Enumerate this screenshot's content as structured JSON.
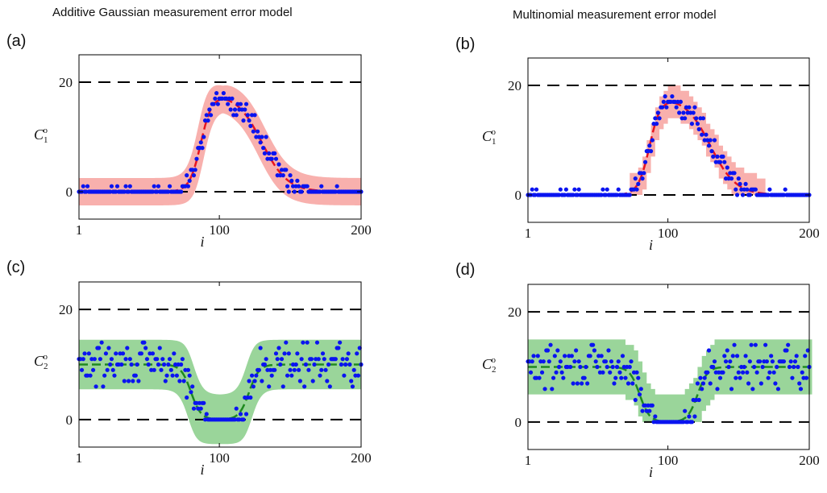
{
  "headers": {
    "left": "Additive Gaussian measurement error model",
    "right": "Multinomial measurement error model"
  },
  "colors": {
    "red_line": "#e8141e",
    "red_band": "#f7a7a4",
    "green_line": "#1f8a1f",
    "green_band": "#8fd08f",
    "points": "#0a14f0",
    "dashes": "#000000"
  },
  "chart_data": [
    {
      "panel": "(a)",
      "type": "line",
      "ylabel": "C",
      "ylabel_sub": "1",
      "ylabel_sup": "o",
      "xlabel": "i",
      "xlim": [
        1,
        200
      ],
      "ylim": [
        -5,
        25
      ],
      "xticks": [
        1,
        100,
        200
      ],
      "yticks": [
        0,
        20
      ],
      "reference_lines": [
        0,
        20
      ],
      "band_style": "smooth",
      "band_halfwidth": 2.5,
      "curve": {
        "type": "pulse",
        "baseline": 0,
        "peak": 18,
        "rise_center": 87,
        "rise_width": 4,
        "fall_center": 130,
        "fall_width": 9
      },
      "scatter_seed": 11
    },
    {
      "panel": "(b)",
      "type": "line",
      "ylabel": "C",
      "ylabel_sub": "1",
      "ylabel_sup": "o",
      "xlabel": "i",
      "xlim": [
        1,
        200
      ],
      "ylim": [
        -5,
        25
      ],
      "xticks": [
        1,
        100,
        200
      ],
      "yticks": [
        0,
        20
      ],
      "reference_lines": [
        0,
        20
      ],
      "band_style": "stepped",
      "band_halfwidth": 2.5,
      "curve": {
        "type": "pulse",
        "baseline": 0,
        "peak": 18,
        "rise_center": 87,
        "rise_width": 4,
        "fall_center": 130,
        "fall_width": 9
      },
      "scatter_seed": 11
    },
    {
      "panel": "(c)",
      "type": "line",
      "ylabel": "C",
      "ylabel_sub": "2",
      "ylabel_sup": "o",
      "xlabel": "i",
      "xlim": [
        1,
        200
      ],
      "ylim": [
        -5,
        25
      ],
      "xticks": [
        1,
        100,
        200
      ],
      "yticks": [
        0,
        20
      ],
      "reference_lines": [
        0,
        20
      ],
      "band_style": "smooth",
      "band_halfwidth": 4.5,
      "curve": {
        "type": "dip",
        "baseline": 10,
        "low": 0,
        "fall_center": 80,
        "fall_width": 3.5,
        "rise_center": 121,
        "rise_width": 3.5
      },
      "scatter_seed": 29
    },
    {
      "panel": "(d)",
      "type": "line",
      "ylabel": "C",
      "ylabel_sub": "2",
      "ylabel_sup": "o",
      "xlabel": "i",
      "xlim": [
        1,
        200
      ],
      "ylim": [
        -5,
        25
      ],
      "xticks": [
        1,
        100,
        200
      ],
      "yticks": [
        0,
        20
      ],
      "reference_lines": [
        0,
        20
      ],
      "band_style": "stepped",
      "band_halfwidth": 4.5,
      "curve": {
        "type": "dip",
        "baseline": 10,
        "low": 0,
        "fall_center": 80,
        "fall_width": 3.5,
        "rise_center": 121,
        "rise_width": 3.5
      },
      "scatter_seed": 29
    }
  ]
}
